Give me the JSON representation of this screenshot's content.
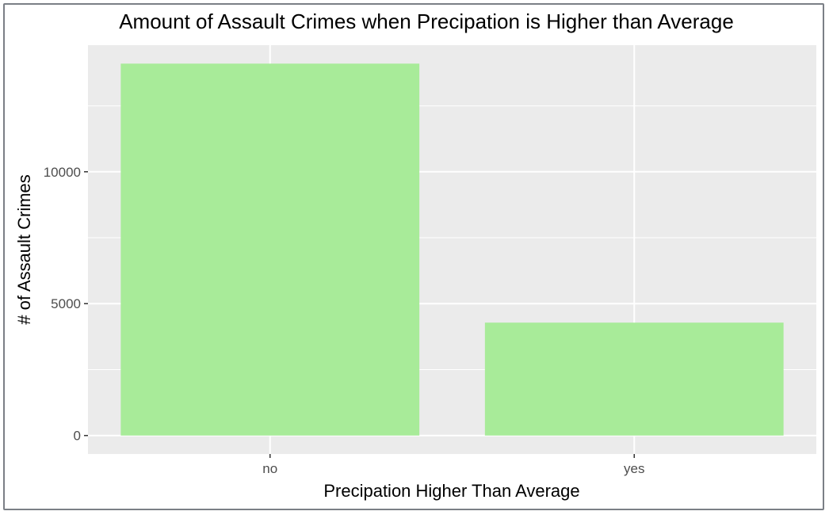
{
  "chart_data": {
    "type": "bar",
    "title": "Amount of Assault Crimes when Precipation is Higher than Average",
    "xlabel": "Precipation Higher Than Average",
    "ylabel": "# of Assault Crimes",
    "categories": [
      "no",
      "yes"
    ],
    "values": [
      14100,
      4280
    ],
    "ylim": [
      -700,
      14800
    ],
    "yticks": [
      0,
      5000,
      10000
    ],
    "ytick_labels": [
      "0",
      "5000",
      "10000"
    ],
    "grid": true,
    "legend": "none"
  },
  "colors": {
    "bar": "#a8eb99",
    "panel_background": "#ebebeb",
    "gridline": "#ffffff",
    "frame_border": "#7b7f86",
    "axis_text": "#4d4d4d",
    "title_text": "#000000"
  }
}
